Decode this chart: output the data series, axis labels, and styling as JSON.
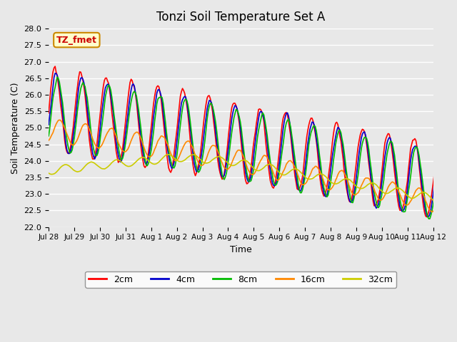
{
  "title": "Tonzi Soil Temperature Set A",
  "xlabel": "Time",
  "ylabel": "Soil Temperature (C)",
  "bg_color": "#e8e8e8",
  "plot_bg_color": "#e8e8e8",
  "ylim": [
    22.0,
    28.0
  ],
  "yticks": [
    22.0,
    22.5,
    23.0,
    23.5,
    24.0,
    24.5,
    25.0,
    25.5,
    26.0,
    26.5,
    27.0,
    27.5,
    28.0
  ],
  "xtick_labels": [
    "Jul 28",
    "Jul 29",
    "Jul 30",
    "Jul 31",
    "Aug 1",
    "Aug 2",
    "Aug 3",
    "Aug 4",
    "Aug 5",
    "Aug 6",
    "Aug 7",
    "Aug 8",
    "Aug 9",
    "Aug 10",
    "Aug 11",
    "Aug 12"
  ],
  "series": [
    {
      "label": "2cm",
      "color": "#ff0000"
    },
    {
      "label": "4cm",
      "color": "#0000cc"
    },
    {
      "label": "8cm",
      "color": "#00bb00"
    },
    {
      "label": "16cm",
      "color": "#ff8800"
    },
    {
      "label": "32cm",
      "color": "#cccc00"
    }
  ],
  "legend_label": "TZ_fmet",
  "legend_bg": "#ffffcc",
  "legend_border": "#cc8800"
}
